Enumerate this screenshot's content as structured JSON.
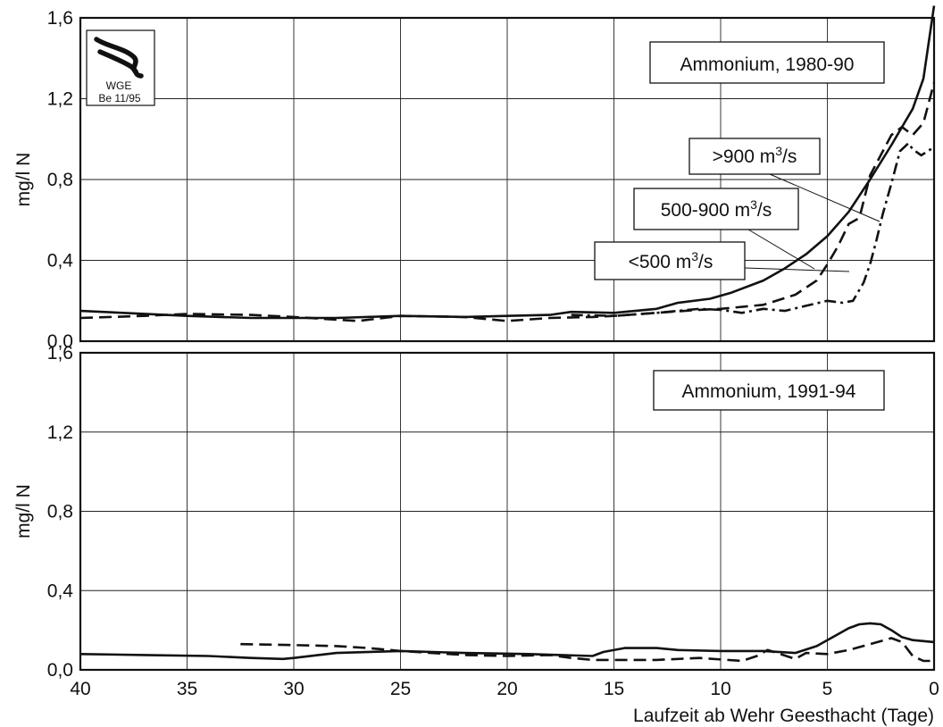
{
  "chart_data": [
    {
      "type": "line",
      "title": "Ammonium, 1980-90",
      "ylabel": "mg/l N",
      "xlabel": "",
      "xlim": [
        40,
        0
      ],
      "ylim": [
        0,
        1.6
      ],
      "x_ticks": [
        40,
        35,
        30,
        25,
        20,
        15,
        10,
        5,
        0
      ],
      "y_ticks": [
        "0,0",
        "0,4",
        "0,8",
        "1,2",
        "1,6"
      ],
      "grid": true,
      "logo": {
        "line1": "WGE",
        "line2": "Be 11/95"
      },
      "series": [
        {
          "name": "<500 m3/s",
          "label_main": "<500 m",
          "label_sup": "3",
          "label_tail": "/s",
          "style": "solid",
          "points": [
            [
              40,
              0.15
            ],
            [
              38,
              0.14
            ],
            [
              35,
              0.125
            ],
            [
              32,
              0.115
            ],
            [
              28,
              0.115
            ],
            [
              25,
              0.125
            ],
            [
              22,
              0.12
            ],
            [
              20,
              0.125
            ],
            [
              18,
              0.13
            ],
            [
              17,
              0.145
            ],
            [
              15,
              0.14
            ],
            [
              13,
              0.16
            ],
            [
              12,
              0.19
            ],
            [
              10.5,
              0.21
            ],
            [
              9.5,
              0.24
            ],
            [
              8,
              0.3
            ],
            [
              7,
              0.36
            ],
            [
              6,
              0.43
            ],
            [
              5,
              0.52
            ],
            [
              4,
              0.64
            ],
            [
              3,
              0.8
            ],
            [
              2,
              0.97
            ],
            [
              1,
              1.15
            ],
            [
              0.5,
              1.3
            ],
            [
              0,
              1.66
            ]
          ]
        },
        {
          "name": "500-900 m3/s",
          "label_main": "500-900 m",
          "label_sup": "3",
          "label_tail": "/s",
          "style": "dashed",
          "points": [
            [
              40,
              0.115
            ],
            [
              37,
              0.125
            ],
            [
              35,
              0.135
            ],
            [
              32,
              0.13
            ],
            [
              30,
              0.12
            ],
            [
              27,
              0.1
            ],
            [
              25,
              0.125
            ],
            [
              22,
              0.12
            ],
            [
              20,
              0.1
            ],
            [
              18,
              0.115
            ],
            [
              16,
              0.12
            ],
            [
              15,
              0.125
            ],
            [
              13,
              0.14
            ],
            [
              11,
              0.155
            ],
            [
              10,
              0.16
            ],
            [
              8,
              0.18
            ],
            [
              6.5,
              0.23
            ],
            [
              5.5,
              0.3
            ],
            [
              5,
              0.38
            ],
            [
              4.5,
              0.47
            ],
            [
              4,
              0.58
            ],
            [
              3.5,
              0.61
            ],
            [
              3,
              0.82
            ],
            [
              2,
              1.02
            ],
            [
              1.5,
              1.06
            ],
            [
              1,
              1.02
            ],
            [
              0.5,
              1.08
            ],
            [
              0,
              1.28
            ]
          ]
        },
        {
          "name": ">900 m3/s",
          "label_main": ">900 m",
          "label_sup": "3",
          "label_tail": "/s",
          "style": "dashdot",
          "points": [
            [
              17,
              0.13
            ],
            [
              15,
              0.125
            ],
            [
              13,
              0.14
            ],
            [
              11,
              0.16
            ],
            [
              10,
              0.155
            ],
            [
              9,
              0.14
            ],
            [
              8,
              0.16
            ],
            [
              7,
              0.15
            ],
            [
              6,
              0.175
            ],
            [
              5,
              0.2
            ],
            [
              4.3,
              0.19
            ],
            [
              3.8,
              0.2
            ],
            [
              3.3,
              0.29
            ],
            [
              3,
              0.38
            ],
            [
              2.7,
              0.5
            ],
            [
              2.4,
              0.63
            ],
            [
              2,
              0.78
            ],
            [
              1.6,
              0.94
            ],
            [
              1.2,
              0.98
            ],
            [
              1,
              0.95
            ],
            [
              0.6,
              0.92
            ],
            [
              0.3,
              0.94
            ],
            [
              0,
              0.96
            ]
          ]
        }
      ]
    },
    {
      "type": "line",
      "title": "Ammonium, 1991-94",
      "ylabel": "mg/l N",
      "xlabel": "Laufzeit ab Wehr Geesthacht (Tage)",
      "xlim": [
        40,
        0
      ],
      "ylim": [
        0,
        1.6
      ],
      "x_ticks": [
        40,
        35,
        30,
        25,
        20,
        15,
        10,
        5,
        0
      ],
      "y_ticks": [
        "0,0",
        "0,4",
        "0,8",
        "1,2",
        "1,6"
      ],
      "grid": true,
      "series": [
        {
          "style": "solid",
          "points": [
            [
              40,
              0.08
            ],
            [
              37,
              0.075
            ],
            [
              34,
              0.07
            ],
            [
              32,
              0.06
            ],
            [
              30.5,
              0.055
            ],
            [
              30,
              0.06
            ],
            [
              28,
              0.085
            ],
            [
              25,
              0.095
            ],
            [
              22,
              0.085
            ],
            [
              19,
              0.08
            ],
            [
              16,
              0.07
            ],
            [
              15.5,
              0.09
            ],
            [
              14.5,
              0.11
            ],
            [
              13,
              0.11
            ],
            [
              12,
              0.1
            ],
            [
              10,
              0.095
            ],
            [
              8,
              0.095
            ],
            [
              6.5,
              0.085
            ],
            [
              5.5,
              0.12
            ],
            [
              4.5,
              0.18
            ],
            [
              4,
              0.21
            ],
            [
              3.5,
              0.23
            ],
            [
              3,
              0.235
            ],
            [
              2.5,
              0.23
            ],
            [
              2,
              0.2
            ],
            [
              1.5,
              0.165
            ],
            [
              1,
              0.15
            ],
            [
              0,
              0.14
            ]
          ]
        },
        {
          "style": "dashed",
          "points": [
            [
              32.5,
              0.13
            ],
            [
              30,
              0.125
            ],
            [
              28,
              0.12
            ],
            [
              26.5,
              0.11
            ],
            [
              25,
              0.095
            ],
            [
              22,
              0.075
            ],
            [
              20,
              0.07
            ],
            [
              18,
              0.075
            ],
            [
              17,
              0.06
            ],
            [
              16,
              0.05
            ],
            [
              13,
              0.05
            ],
            [
              11,
              0.06
            ],
            [
              9,
              0.045
            ],
            [
              8.3,
              0.07
            ],
            [
              7.8,
              0.1
            ],
            [
              7.2,
              0.08
            ],
            [
              6.5,
              0.055
            ],
            [
              6,
              0.085
            ],
            [
              5,
              0.08
            ],
            [
              4,
              0.1
            ],
            [
              3,
              0.13
            ],
            [
              2,
              0.16
            ],
            [
              1.5,
              0.14
            ],
            [
              1,
              0.07
            ],
            [
              0.5,
              0.045
            ],
            [
              0,
              0.045
            ]
          ]
        }
      ]
    }
  ]
}
